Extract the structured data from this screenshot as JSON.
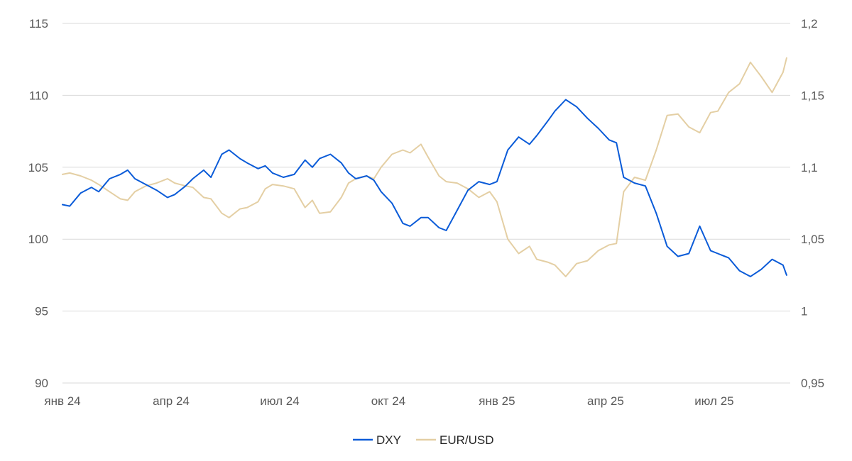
{
  "chart_data": {
    "type": "line",
    "title": "",
    "xlabel": "",
    "ylabel": "",
    "x_tick_labels": [
      "янв 24",
      "апр 24",
      "июл 24",
      "окт 24",
      "янв 25",
      "апр 25",
      "июл 25"
    ],
    "x_range": [
      0,
      20.1
    ],
    "y_left": {
      "ticks": [
        "90",
        "95",
        "100",
        "105",
        "110",
        "115"
      ],
      "range": [
        90,
        115
      ]
    },
    "y_right": {
      "ticks": [
        "0,95",
        "1",
        "1,05",
        "1,1",
        "1,15",
        "1,2"
      ],
      "range": [
        0.95,
        1.2
      ]
    },
    "grid": true,
    "legend_position": "bottom",
    "series": [
      {
        "name": "DXY",
        "axis": "left",
        "color": "#0a5bd8",
        "x": [
          0,
          0.2,
          0.5,
          0.8,
          1.0,
          1.3,
          1.6,
          1.8,
          2.0,
          2.3,
          2.6,
          2.9,
          3.1,
          3.4,
          3.6,
          3.9,
          4.1,
          4.4,
          4.6,
          4.9,
          5.1,
          5.4,
          5.6,
          5.8,
          6.1,
          6.4,
          6.7,
          6.9,
          7.1,
          7.4,
          7.7,
          7.9,
          8.1,
          8.4,
          8.6,
          8.8,
          9.1,
          9.4,
          9.6,
          9.9,
          10.1,
          10.4,
          10.6,
          10.9,
          11.2,
          11.5,
          11.8,
          12.0,
          12.3,
          12.6,
          12.9,
          13.1,
          13.4,
          13.6,
          13.9,
          14.2,
          14.5,
          14.8,
          15.1,
          15.3,
          15.5,
          15.8,
          16.1,
          16.4,
          16.7,
          17.0,
          17.3,
          17.6,
          17.9,
          18.1,
          18.4,
          18.7,
          19.0,
          19.3,
          19.6,
          19.9,
          20.0
        ],
        "values": [
          102.4,
          102.3,
          103.2,
          103.6,
          103.3,
          104.2,
          104.5,
          104.8,
          104.2,
          103.8,
          103.4,
          102.9,
          103.1,
          103.7,
          104.2,
          104.8,
          104.3,
          105.9,
          106.2,
          105.6,
          105.3,
          104.9,
          105.1,
          104.6,
          104.3,
          104.5,
          105.5,
          105.0,
          105.6,
          105.9,
          105.3,
          104.6,
          104.2,
          104.4,
          104.1,
          103.3,
          102.5,
          101.1,
          100.9,
          101.5,
          101.5,
          100.8,
          100.6,
          102.0,
          103.4,
          104.0,
          103.8,
          104.0,
          106.2,
          107.1,
          106.6,
          107.2,
          108.2,
          108.9,
          109.7,
          109.2,
          108.4,
          107.7,
          106.9,
          106.7,
          104.3,
          103.9,
          103.7,
          101.8,
          99.5,
          98.8,
          99.0,
          100.9,
          99.2,
          99.0,
          98.7,
          97.8,
          97.4,
          97.9,
          98.6,
          98.2,
          97.5
        ]
      },
      {
        "name": "EUR/USD",
        "axis": "right",
        "color": "#e4cfa4",
        "x": [
          0,
          0.2,
          0.5,
          0.8,
          1.0,
          1.3,
          1.6,
          1.8,
          2.0,
          2.3,
          2.6,
          2.9,
          3.1,
          3.4,
          3.6,
          3.9,
          4.1,
          4.4,
          4.6,
          4.9,
          5.1,
          5.4,
          5.6,
          5.8,
          6.1,
          6.4,
          6.7,
          6.9,
          7.1,
          7.4,
          7.7,
          7.9,
          8.1,
          8.4,
          8.6,
          8.8,
          9.1,
          9.4,
          9.6,
          9.9,
          10.1,
          10.4,
          10.6,
          10.9,
          11.2,
          11.5,
          11.8,
          12.0,
          12.3,
          12.6,
          12.9,
          13.1,
          13.4,
          13.6,
          13.9,
          14.2,
          14.5,
          14.8,
          15.1,
          15.3,
          15.5,
          15.8,
          16.1,
          16.4,
          16.7,
          17.0,
          17.3,
          17.6,
          17.9,
          18.1,
          18.4,
          18.7,
          19.0,
          19.3,
          19.6,
          19.9,
          20.0
        ],
        "values": [
          1.095,
          1.096,
          1.094,
          1.091,
          1.088,
          1.083,
          1.078,
          1.077,
          1.083,
          1.087,
          1.089,
          1.092,
          1.089,
          1.087,
          1.086,
          1.079,
          1.078,
          1.068,
          1.065,
          1.071,
          1.072,
          1.076,
          1.085,
          1.088,
          1.087,
          1.085,
          1.072,
          1.077,
          1.068,
          1.069,
          1.079,
          1.089,
          1.092,
          1.094,
          1.092,
          1.1,
          1.109,
          1.112,
          1.11,
          1.116,
          1.107,
          1.094,
          1.09,
          1.089,
          1.085,
          1.079,
          1.083,
          1.076,
          1.05,
          1.04,
          1.045,
          1.036,
          1.034,
          1.032,
          1.024,
          1.033,
          1.035,
          1.042,
          1.046,
          1.047,
          1.083,
          1.093,
          1.091,
          1.112,
          1.136,
          1.137,
          1.128,
          1.124,
          1.138,
          1.139,
          1.152,
          1.158,
          1.173,
          1.163,
          1.152,
          1.166,
          1.176
        ]
      }
    ]
  }
}
